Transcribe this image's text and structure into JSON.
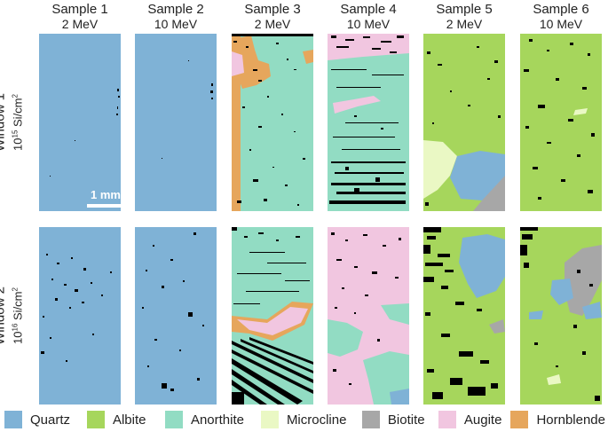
{
  "columns": [
    {
      "sample": "Sample 1",
      "energy": "2 MeV"
    },
    {
      "sample": "Sample 2",
      "energy": "10 MeV"
    },
    {
      "sample": "Sample 3",
      "energy": "2 MeV"
    },
    {
      "sample": "Sample 4",
      "energy": "10 MeV"
    },
    {
      "sample": "Sample 5",
      "energy": "2 MeV"
    },
    {
      "sample": "Sample 6",
      "energy": "10 MeV"
    }
  ],
  "rows": [
    {
      "window": "Window 1",
      "fluence_base": "10",
      "fluence_exp": "15",
      "fluence_unit": " Si/cm",
      "fluence_unit_exp": "2"
    },
    {
      "window": "Window 2",
      "fluence_base": "10",
      "fluence_exp": "16",
      "fluence_unit": " Si/cm",
      "fluence_unit_exp": "2"
    }
  ],
  "scale_bar": {
    "label": "1 mm"
  },
  "legend": [
    {
      "label": "Quartz",
      "color": "#7fb2d6"
    },
    {
      "label": "Albite",
      "color": "#a6d65c"
    },
    {
      "label": "Anorthite",
      "color": "#92dcc3"
    },
    {
      "label": "Microcline",
      "color": "#eaf8c4"
    },
    {
      "label": "Biotite",
      "color": "#a7a7a7"
    },
    {
      "label": "Augite",
      "color": "#f1c6e0"
    },
    {
      "label": "Hornblende",
      "color": "#e6a65c"
    }
  ]
}
